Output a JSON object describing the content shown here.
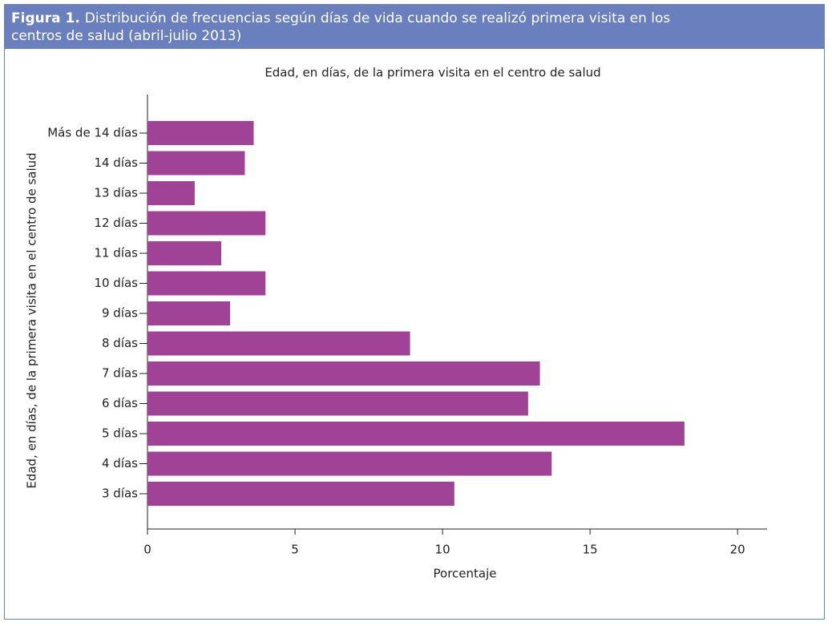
{
  "header": {
    "label": "Figura 1.",
    "title": "Distribución de frecuencias según días de vida cuando se realizó primera visita en los centros de salud (abril-julio 2013)"
  },
  "chart_data": {
    "type": "bar",
    "orientation": "horizontal",
    "title": "Edad, en días, de la primera visita en el centro de salud",
    "x_label": "Porcentaje",
    "y_label": "Edad, en días, de la primera visita en el centro de salud",
    "categories": [
      "3 días",
      "4 días",
      "5 días",
      "6 días",
      "7 días",
      "8 días",
      "9 días",
      "10 días",
      "11 días",
      "12 días",
      "13 días",
      "14 días",
      "Más de 14 días"
    ],
    "values": [
      10.4,
      13.7,
      18.2,
      12.9,
      13.3,
      8.9,
      2.8,
      4.0,
      2.5,
      4.0,
      1.6,
      3.3,
      3.6
    ],
    "color": "#a04396",
    "xlim": [
      0,
      21
    ],
    "xticks": [
      0,
      5,
      10,
      15,
      20
    ]
  }
}
